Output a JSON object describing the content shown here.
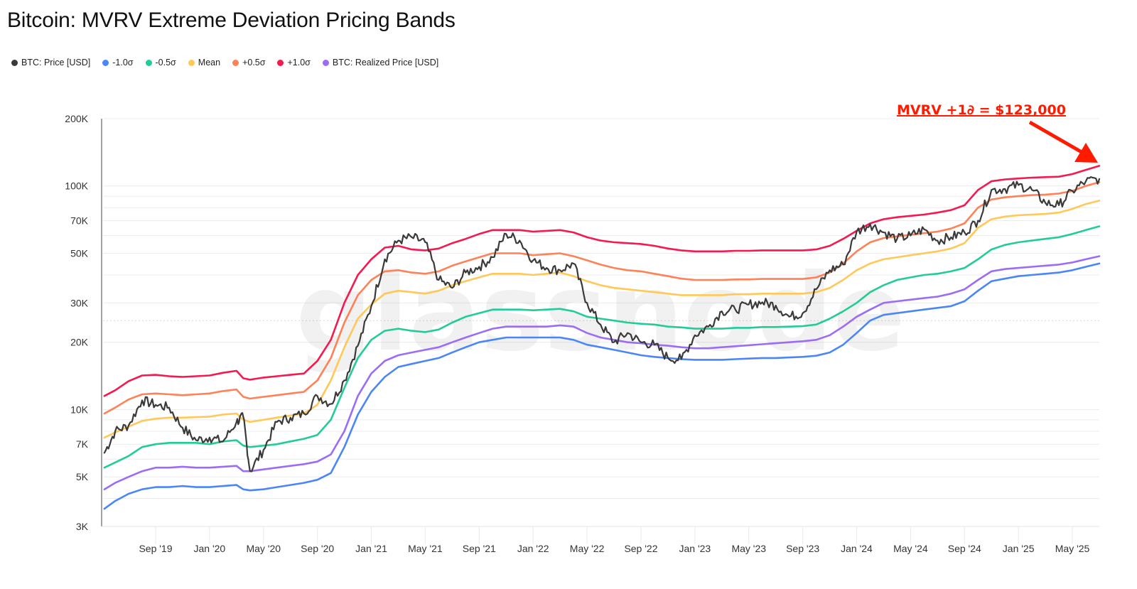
{
  "page": {
    "title": "Bitcoin: MVRV Extreme Deviation Pricing Bands",
    "watermark": "glassnode"
  },
  "legend": [
    {
      "label": "BTC: Price [USD]",
      "color": "#3a3a3a"
    },
    {
      "label": "-1.0σ",
      "color": "#4a86f7"
    },
    {
      "label": "-0.5σ",
      "color": "#22cc99"
    },
    {
      "label": "Mean",
      "color": "#ffc857"
    },
    {
      "label": "+0.5σ",
      "color": "#ff8157"
    },
    {
      "label": "+1.0σ",
      "color": "#f5194f"
    },
    {
      "label": "BTC: Realized Price [USD]",
      "color": "#9c6cf5"
    }
  ],
  "annotation": {
    "text": "MVRV +1∂ = $123,000",
    "color": "#ff1a00"
  },
  "chart_data": {
    "type": "line",
    "title": "Bitcoin: MVRV Extreme Deviation Pricing Bands",
    "xlabel": "",
    "ylabel": "",
    "yscale": "log",
    "ylim": [
      3000,
      200000
    ],
    "y_ticks": [
      3000,
      5000,
      7000,
      10000,
      20000,
      30000,
      50000,
      70000,
      100000,
      200000
    ],
    "y_tick_labels": [
      "3K",
      "5K",
      "7K",
      "10K",
      "20K",
      "30K",
      "50K",
      "70K",
      "100K",
      "200K"
    ],
    "x_tick_labels": [
      "Sep '19",
      "Jan '20",
      "May '20",
      "Sep '20",
      "Jan '21",
      "May '21",
      "Sep '21",
      "Jan '22",
      "May '22",
      "Sep '22",
      "Jan '23",
      "May '23",
      "Sep '23",
      "Jan '24",
      "May '24",
      "Sep '24",
      "Jan '25",
      "May '25"
    ],
    "x_tick_months": [
      4,
      8,
      12,
      16,
      20,
      24,
      28,
      32,
      36,
      40,
      44,
      48,
      52,
      56,
      60,
      64,
      68,
      72
    ],
    "x_range_months": [
      0.1,
      74.0
    ],
    "x_note": "x values are months since May 1 2019",
    "grid": true,
    "legend_position": "top-left",
    "x": [
      0.2,
      1,
      2,
      3,
      4,
      5,
      6,
      7,
      8,
      9,
      10,
      10.5,
      11,
      12,
      13,
      14,
      15,
      16,
      17,
      18,
      19,
      20,
      21,
      22,
      23,
      24,
      25,
      26,
      27,
      28,
      29,
      30,
      31,
      32,
      33,
      34,
      35,
      36,
      37,
      38,
      39,
      40,
      41,
      42,
      43,
      44,
      45,
      46,
      47,
      48,
      49,
      50,
      51,
      52,
      53,
      54,
      55,
      56,
      57,
      58,
      59,
      60,
      61,
      62,
      63,
      64,
      65,
      66,
      67,
      68,
      69,
      70,
      71,
      72,
      73,
      74
    ],
    "series": [
      {
        "name": "+1.0σ",
        "color": "#f5194f",
        "values": [
          11500,
          12200,
          13400,
          14200,
          14300,
          14100,
          14000,
          14100,
          14200,
          14600,
          14900,
          13800,
          13600,
          13900,
          14100,
          14300,
          14500,
          16500,
          20500,
          30000,
          40000,
          47000,
          53000,
          54000,
          52000,
          51500,
          52500,
          55500,
          58000,
          61000,
          63500,
          63500,
          63500,
          62500,
          63000,
          63500,
          62000,
          59000,
          57000,
          56000,
          55500,
          55000,
          54000,
          52500,
          51500,
          51000,
          51000,
          51000,
          51300,
          51300,
          51500,
          51500,
          51500,
          51500,
          52000,
          54000,
          58000,
          63000,
          68000,
          71000,
          72500,
          73500,
          74500,
          76000,
          78000,
          82000,
          96000,
          105000,
          107000,
          108000,
          109000,
          109500,
          110000,
          113000,
          118000,
          123000
        ]
      },
      {
        "name": "+0.5σ",
        "color": "#ff8157",
        "values": [
          9600,
          10200,
          11100,
          11700,
          11800,
          11700,
          11600,
          11700,
          11800,
          12100,
          12300,
          11400,
          11200,
          11400,
          11600,
          11800,
          12000,
          13500,
          17000,
          24500,
          32500,
          38000,
          41500,
          42000,
          41000,
          40500,
          41500,
          44000,
          46000,
          48000,
          50000,
          50000,
          50000,
          49000,
          49500,
          50000,
          48500,
          46500,
          44500,
          43000,
          42000,
          41500,
          40500,
          39500,
          38500,
          38000,
          38000,
          38000,
          38200,
          38200,
          38400,
          38400,
          38400,
          38400,
          39000,
          41000,
          45000,
          51000,
          56000,
          58500,
          59500,
          60500,
          61500,
          62500,
          64500,
          68000,
          80000,
          87000,
          89000,
          90000,
          91000,
          91500,
          92500,
          95000,
          100000,
          104000
        ]
      },
      {
        "name": "Mean",
        "color": "#ffc857",
        "values": [
          7500,
          7900,
          8400,
          8900,
          9100,
          9200,
          9200,
          9250,
          9300,
          9500,
          9600,
          9000,
          8800,
          9000,
          9200,
          9400,
          9600,
          10500,
          13500,
          19000,
          25500,
          29500,
          33000,
          34000,
          33500,
          33000,
          34000,
          36000,
          37500,
          39000,
          40500,
          40500,
          40500,
          40000,
          40500,
          41000,
          39500,
          37500,
          36000,
          35000,
          34500,
          34000,
          33500,
          33000,
          32500,
          32500,
          32500,
          32500,
          32800,
          32800,
          33000,
          33000,
          33000,
          33000,
          33500,
          35000,
          38000,
          42000,
          45000,
          47000,
          48000,
          49000,
          50000,
          51000,
          52500,
          55500,
          65000,
          71000,
          73000,
          74000,
          74500,
          75000,
          76000,
          79000,
          83000,
          86000
        ]
      },
      {
        "name": "-0.5σ",
        "color": "#22cc99",
        "values": [
          5500,
          5800,
          6200,
          6800,
          7000,
          7100,
          7100,
          7100,
          7000,
          7200,
          7300,
          6900,
          6800,
          6900,
          7000,
          7200,
          7400,
          7700,
          9000,
          12500,
          17000,
          20500,
          22500,
          23000,
          22500,
          22200,
          22800,
          24500,
          26000,
          27000,
          28000,
          28000,
          28000,
          27800,
          28000,
          28200,
          27500,
          26000,
          25500,
          25000,
          24500,
          24200,
          24000,
          23500,
          23300,
          23000,
          23000,
          23000,
          23200,
          23200,
          23400,
          23400,
          23500,
          23600,
          24000,
          25500,
          27500,
          30000,
          33500,
          36000,
          38000,
          39000,
          40000,
          40500,
          41500,
          43000,
          47000,
          52000,
          54500,
          56000,
          57000,
          58000,
          59000,
          61000,
          63500,
          66000
        ]
      },
      {
        "name": "BTC: Realized Price [USD]",
        "color": "#9c6cf5",
        "values": [
          4400,
          4700,
          5000,
          5300,
          5500,
          5500,
          5550,
          5500,
          5500,
          5550,
          5600,
          5300,
          5300,
          5400,
          5500,
          5600,
          5700,
          5850,
          6300,
          8000,
          11500,
          14500,
          16500,
          17500,
          18000,
          18500,
          19000,
          20000,
          21000,
          22000,
          23000,
          23500,
          23500,
          23500,
          23500,
          23800,
          23500,
          22000,
          21000,
          20500,
          20000,
          19800,
          19500,
          19300,
          19000,
          18800,
          18800,
          19000,
          19200,
          19400,
          19600,
          19800,
          20000,
          20200,
          20500,
          21500,
          23500,
          26000,
          28000,
          30000,
          30500,
          31000,
          31500,
          32000,
          33000,
          34500,
          38000,
          41500,
          42500,
          43000,
          43500,
          44000,
          44500,
          45500,
          47000,
          48500
        ]
      },
      {
        "name": "-1.0σ",
        "color": "#4a86f7",
        "values": [
          3600,
          3900,
          4200,
          4400,
          4500,
          4500,
          4550,
          4500,
          4500,
          4550,
          4600,
          4400,
          4350,
          4400,
          4500,
          4600,
          4700,
          4850,
          5200,
          6800,
          9500,
          12000,
          14000,
          15500,
          16000,
          16500,
          17000,
          18000,
          19000,
          20000,
          20500,
          21000,
          21000,
          21000,
          21000,
          21000,
          20500,
          19500,
          19000,
          18500,
          18000,
          17500,
          17200,
          17000,
          16800,
          16700,
          16700,
          16700,
          16800,
          16900,
          17000,
          17000,
          17100,
          17200,
          17400,
          18000,
          19500,
          22000,
          25000,
          26500,
          27000,
          27500,
          28000,
          28500,
          29000,
          30500,
          34000,
          37500,
          38500,
          39500,
          40000,
          40500,
          41000,
          42000,
          43500,
          45000
        ]
      },
      {
        "name": "BTC: Price [USD]",
        "color": "#3a3a3a",
        "values": [
          6400,
          8000,
          8500,
          11000,
          10500,
          10200,
          8300,
          7300,
          7500,
          7200,
          8800,
          9300,
          5300,
          6600,
          8800,
          9200,
          9600,
          11500,
          10600,
          13500,
          19300,
          29000,
          47000,
          57000,
          59000,
          56000,
          38000,
          35000,
          41000,
          43500,
          48000,
          61000,
          57000,
          46500,
          43000,
          42000,
          45000,
          30000,
          24000,
          20000,
          22000,
          20000,
          19500,
          17000,
          16800,
          21500,
          23500,
          27500,
          28000,
          29500,
          30200,
          29200,
          26000,
          27000,
          34500,
          42000,
          44500,
          62500,
          67500,
          62000,
          58000,
          60000,
          64000,
          57000,
          59000,
          62000,
          70000,
          96000,
          97000,
          101000,
          96000,
          84000,
          82000,
          95000,
          105000,
          107500
        ]
      }
    ],
    "annotations": [
      {
        "text": "MVRV +1∂ = $123,000",
        "points_to": {
          "x": 74,
          "y": 123000
        }
      }
    ]
  }
}
